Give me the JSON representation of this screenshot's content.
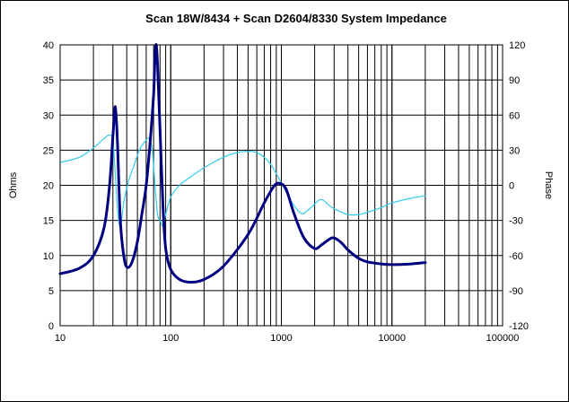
{
  "chart_data": {
    "type": "line",
    "title": "Scan 18W/8434  + Scan D2604/8330      System Impedance",
    "xlabel": "",
    "ylabel": "Ohms",
    "y2label": "Phase",
    "xscale": "log",
    "xlim": [
      10,
      100000
    ],
    "ylim": [
      0,
      40
    ],
    "y2lim": [
      -120,
      120
    ],
    "grid": true,
    "x_ticks": [
      "10",
      "100",
      "1000",
      "10000",
      "100000"
    ],
    "y_ticks": [
      "0",
      "5",
      "10",
      "15",
      "20",
      "25",
      "30",
      "35",
      "40"
    ],
    "y2_ticks": [
      "-120",
      "-90",
      "-60",
      "-30",
      "0",
      "30",
      "60",
      "90",
      "120"
    ],
    "series": [
      {
        "axis": "left",
        "color": "#000080",
        "x": [
          10,
          15,
          20,
          25,
          28,
          30,
          31.5,
          33,
          35,
          38,
          41,
          45,
          50,
          55,
          60,
          65,
          70,
          72,
          74,
          76,
          80,
          85,
          90,
          100,
          120,
          150,
          200,
          300,
          500,
          700,
          850,
          950,
          1100,
          1300,
          1600,
          2000,
          2300,
          2700,
          3000,
          3500,
          4000,
          5000,
          6000,
          8000,
          10000,
          15000,
          20000
        ],
        "values": [
          7.4,
          8.2,
          10,
          14,
          20,
          27,
          31.2,
          26,
          15,
          9.5,
          8.3,
          9.2,
          12,
          16,
          20,
          26,
          33,
          38.5,
          40,
          37,
          28,
          17,
          11,
          8,
          6.6,
          6.2,
          6.6,
          8.5,
          13,
          17.5,
          19.8,
          20.3,
          19.5,
          16,
          12.5,
          11,
          11.5,
          12.3,
          12.5,
          11.8,
          10.8,
          9.6,
          9.1,
          8.8,
          8.7,
          8.8,
          9.0
        ]
      },
      {
        "axis": "right",
        "color": "#33CCEE",
        "x": [
          10,
          15,
          20,
          25,
          28,
          30,
          31.5,
          33,
          35,
          38,
          42,
          47,
          52,
          58,
          64,
          68,
          72,
          76,
          80,
          85,
          90,
          100,
          120,
          150,
          200,
          300,
          400,
          500,
          600,
          700,
          800,
          900,
          1000,
          1200,
          1500,
          1800,
          2000,
          2300,
          2700,
          3000,
          4000,
          5000,
          6000,
          8000,
          10000,
          15000,
          20000
        ],
        "values": [
          19.5,
          24,
          32,
          40,
          43,
          38,
          10,
          -20,
          -35,
          -12,
          5,
          18,
          30,
          37,
          40,
          30,
          0,
          -25,
          -30,
          -35,
          -25,
          -10,
          0,
          7,
          15,
          24,
          28,
          29,
          28,
          24,
          18,
          10,
          2,
          -12,
          -24,
          -20,
          -16,
          -12,
          -17,
          -20,
          -25,
          -25,
          -23,
          -19,
          -15,
          -11,
          -9
        ]
      }
    ]
  }
}
